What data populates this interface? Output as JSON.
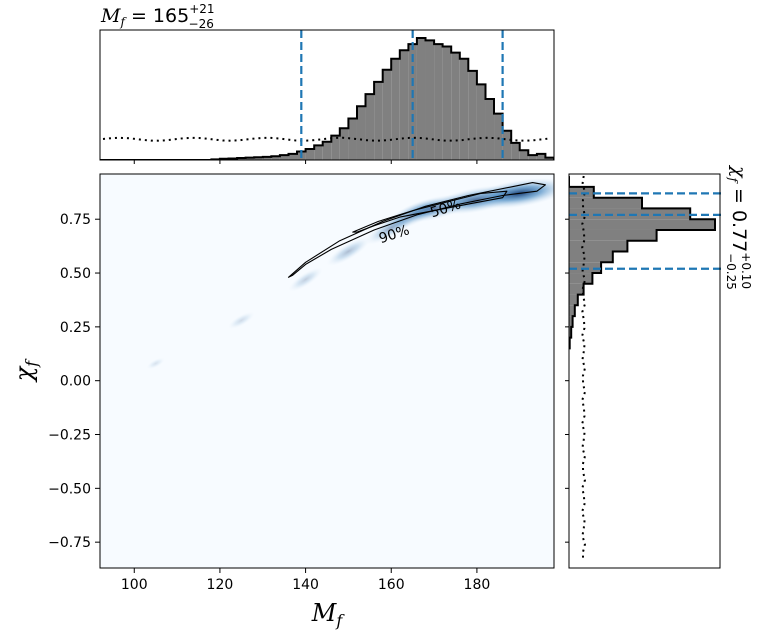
{
  "chart_data": [
    {
      "panel": "joint",
      "type": "heatmap",
      "xlabel_symbol": "M",
      "xlabel_sub": "f",
      "ylabel_symbol": "χ",
      "ylabel_sub": "f",
      "xlim": [
        92,
        198
      ],
      "ylim": [
        -0.87,
        0.96
      ],
      "xticks": [
        "100",
        "120",
        "140",
        "160",
        "180"
      ],
      "xtick_values": [
        100,
        120,
        140,
        160,
        180
      ],
      "yticks": [
        "−0.75",
        "−0.50",
        "−0.25",
        "0.00",
        "0.25",
        "0.50",
        "0.75"
      ],
      "ytick_values": [
        -0.75,
        -0.5,
        -0.25,
        0.0,
        0.25,
        0.5,
        0.75
      ],
      "colormap": "Blues",
      "density_ridge": [
        [
          105,
          0.08
        ],
        [
          125,
          0.28
        ],
        [
          140,
          0.47
        ],
        [
          150,
          0.6
        ],
        [
          160,
          0.71
        ],
        [
          165,
          0.77
        ],
        [
          170,
          0.8
        ],
        [
          180,
          0.84
        ],
        [
          190,
          0.87
        ]
      ],
      "contours": [
        {
          "label": "90%",
          "points": [
            [
              136,
              0.48
            ],
            [
              140,
              0.55
            ],
            [
              148,
              0.65
            ],
            [
              158,
              0.74
            ],
            [
              168,
              0.81
            ],
            [
              178,
              0.86
            ],
            [
              188,
              0.9
            ],
            [
              193,
              0.92
            ],
            [
              196,
              0.91
            ],
            [
              194,
              0.88
            ],
            [
              186,
              0.86
            ],
            [
              176,
              0.82
            ],
            [
              166,
              0.77
            ],
            [
              156,
              0.7
            ],
            [
              146,
              0.61
            ],
            [
              140,
              0.54
            ],
            [
              137,
              0.49
            ]
          ]
        },
        {
          "label": "50%",
          "points": [
            [
              151,
              0.69
            ],
            [
              157,
              0.74
            ],
            [
              165,
              0.79
            ],
            [
              173,
              0.83
            ],
            [
              181,
              0.87
            ],
            [
              187,
              0.88
            ],
            [
              186,
              0.85
            ],
            [
              178,
              0.82
            ],
            [
              170,
              0.79
            ],
            [
              162,
              0.76
            ],
            [
              156,
              0.72
            ],
            [
              152,
              0.69
            ]
          ]
        }
      ]
    },
    {
      "panel": "top-marginal",
      "type": "histogram",
      "title_symbol": "M",
      "title_sub": "f",
      "title_value": " = 165",
      "title_sup": "+21",
      "title_sub2": "−26",
      "bin_start": 92,
      "bin_width": 2,
      "values": [
        0.0,
        0.0,
        0.0,
        0.0,
        0.0,
        0.0,
        0.0,
        0.0,
        0.0,
        0.0,
        0.0,
        0.0,
        0.0,
        0.005,
        0.01,
        0.012,
        0.016,
        0.02,
        0.022,
        0.025,
        0.03,
        0.04,
        0.05,
        0.07,
        0.09,
        0.12,
        0.15,
        0.2,
        0.26,
        0.34,
        0.44,
        0.54,
        0.64,
        0.74,
        0.83,
        0.9,
        0.95,
        1.0,
        0.98,
        0.95,
        0.93,
        0.88,
        0.83,
        0.73,
        0.62,
        0.5,
        0.38,
        0.24,
        0.14,
        0.08,
        0.04,
        0.05,
        0.02
      ],
      "prior_level": 0.17,
      "median": 165,
      "lower_90": 139,
      "upper_90": 186
    },
    {
      "panel": "right-marginal",
      "type": "histogram",
      "orientation": "horizontal",
      "title_symbol": "χ",
      "title_sub": "f",
      "title_value": " = 0.77",
      "title_sup": "+0.10",
      "title_sub2": "−0.25",
      "bins_y": [
        0.925,
        0.875,
        0.825,
        0.775,
        0.725,
        0.675,
        0.625,
        0.575,
        0.525,
        0.475,
        0.425,
        0.375,
        0.325,
        0.275,
        0.225,
        0.175
      ],
      "values": [
        0.0,
        0.17,
        0.5,
        0.83,
        1.0,
        0.6,
        0.4,
        0.3,
        0.22,
        0.16,
        0.1,
        0.06,
        0.04,
        0.025,
        0.015,
        0.005
      ],
      "prior_level": 0.1,
      "median": 0.77,
      "lower_90": 0.52,
      "upper_90": 0.87
    }
  ],
  "contour_labels": {
    "outer": "90%",
    "inner": "50%"
  },
  "colors": {
    "hist_fill": "#808080",
    "hist_edge": "#000000",
    "quantile_line": "#1f77b4"
  }
}
